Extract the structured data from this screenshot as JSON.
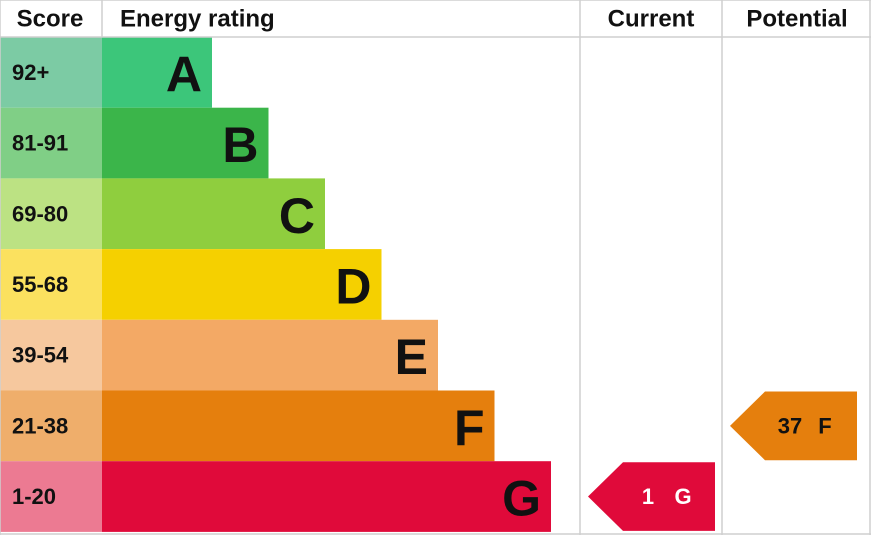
{
  "header": {
    "score": "Score",
    "rating": "Energy rating",
    "current": "Current",
    "potential": "Potential"
  },
  "bands": [
    {
      "score": "92+",
      "letter": "A",
      "color": "#3cc67a",
      "score_color": "#7ccba4"
    },
    {
      "score": "81-91",
      "letter": "B",
      "color": "#3bb54a",
      "score_color": "#80cf86"
    },
    {
      "score": "69-80",
      "letter": "C",
      "color": "#8fce3e",
      "score_color": "#bce283"
    },
    {
      "score": "55-68",
      "letter": "D",
      "color": "#f5d000",
      "score_color": "#fbe15f"
    },
    {
      "score": "39-54",
      "letter": "E",
      "color": "#f3a965",
      "score_color": "#f6c89e"
    },
    {
      "score": "21-38",
      "letter": "F",
      "color": "#e57f0d",
      "score_color": "#efae6b"
    },
    {
      "score": "1-20",
      "letter": "G",
      "color": "#e00a3a",
      "score_color": "#ec7a92"
    }
  ],
  "current": {
    "score": 1,
    "letter": "G"
  },
  "potential": {
    "score": 37,
    "letter": "F"
  }
}
